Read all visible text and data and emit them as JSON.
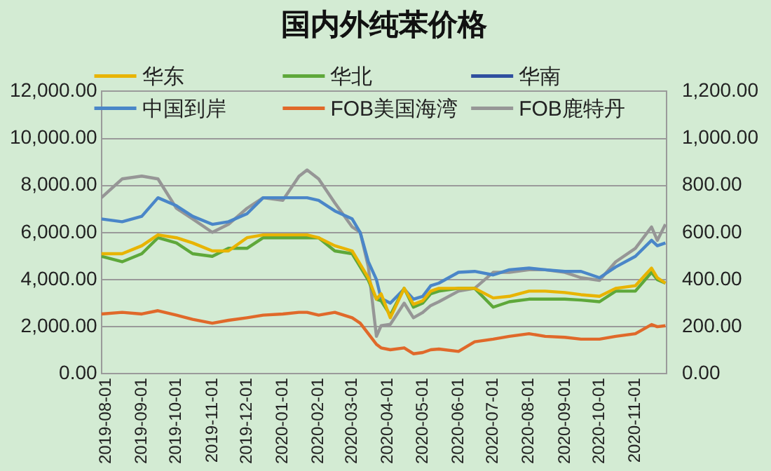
{
  "chart_data": {
    "type": "line",
    "title": "国内外纯苯价格",
    "x": [
      "2019-07-28",
      "2019-08-15",
      "2019-09-01",
      "2019-09-15",
      "2019-10-01",
      "2019-10-15",
      "2019-11-01",
      "2019-11-15",
      "2019-12-01",
      "2019-12-15",
      "2020-01-01",
      "2020-01-15",
      "2020-01-22",
      "2020-02-01",
      "2020-02-15",
      "2020-03-01",
      "2020-03-08",
      "2020-03-15",
      "2020-03-22",
      "2020-03-26",
      "2020-04-03",
      "2020-04-15",
      "2020-04-23",
      "2020-05-01",
      "2020-05-08",
      "2020-05-15",
      "2020-06-01",
      "2020-06-15",
      "2020-07-01",
      "2020-07-15",
      "2020-08-01",
      "2020-08-15",
      "2020-09-01",
      "2020-09-15",
      "2020-10-01",
      "2020-10-15",
      "2020-11-01",
      "2020-11-15",
      "2020-11-20",
      "2020-11-27"
    ],
    "series": [
      {
        "name": "华东",
        "color": "#e8b400",
        "values": [
          5100,
          5100,
          5440,
          5900,
          5780,
          5560,
          5220,
          5220,
          5780,
          5900,
          5900,
          5900,
          5900,
          5780,
          5440,
          5220,
          4650,
          4080,
          3170,
          3400,
          2380,
          3630,
          2950,
          3100,
          3510,
          3630,
          3630,
          3630,
          3220,
          3290,
          3510,
          3510,
          3450,
          3360,
          3290,
          3630,
          3740,
          4490,
          4080,
          3850
        ]
      },
      {
        "name": "华北",
        "color": "#5ea83a",
        "values": [
          4990,
          4760,
          5100,
          5780,
          5560,
          5100,
          4990,
          5330,
          5330,
          5780,
          5780,
          5780,
          5780,
          5780,
          5220,
          5100,
          4540,
          3970,
          3170,
          3100,
          2490,
          3630,
          2830,
          3000,
          3400,
          3510,
          3630,
          3630,
          2830,
          3060,
          3170,
          3170,
          3170,
          3130,
          3060,
          3510,
          3510,
          4310,
          4000,
          3850
        ]
      },
      {
        "name": "华南",
        "color": "#2f4f9f",
        "values": [
          null,
          null,
          null,
          null,
          null,
          null,
          null,
          null,
          null,
          null,
          null,
          null,
          null,
          null,
          null,
          null,
          null,
          null,
          null,
          null,
          null,
          null,
          null,
          null,
          null,
          null,
          null,
          null,
          null,
          null,
          null,
          null,
          null,
          null,
          null,
          null,
          null,
          null,
          null,
          null
        ]
      },
      {
        "name": "中国到岸",
        "color": "#4a86c8",
        "axis": "y2",
        "values": [
          658,
          646,
          669,
          748,
          714,
          669,
          635,
          646,
          680,
          748,
          748,
          748,
          748,
          737,
          692,
          658,
          600,
          476,
          400,
          320,
          300,
          360,
          317,
          329,
          374,
          385,
          431,
          435,
          420,
          442,
          449,
          442,
          435,
          435,
          408,
          454,
          499,
          567,
          544,
          556
        ]
      },
      {
        "name": "FOB美国海湾",
        "color": "#e0692a",
        "axis": "y2",
        "values": [
          254,
          261,
          254,
          268,
          249,
          231,
          215,
          227,
          238,
          249,
          254,
          261,
          261,
          249,
          261,
          238,
          215,
          170,
          125,
          110,
          102,
          110,
          85,
          90,
          102,
          105,
          95,
          136,
          147,
          159,
          170,
          159,
          155,
          147,
          147,
          159,
          170,
          209,
          200,
          204
        ]
      },
      {
        "name": "FOB鹿特丹",
        "color": "#969696",
        "axis": "y2",
        "values": [
          748,
          828,
          840,
          828,
          703,
          658,
          601,
          635,
          703,
          748,
          737,
          839,
          866,
          828,
          726,
          624,
          601,
          454,
          159,
          204,
          210,
          300,
          238,
          260,
          290,
          306,
          351,
          363,
          431,
          431,
          442,
          442,
          431,
          408,
          397,
          476,
          533,
          624,
          567,
          635
        ]
      }
    ],
    "xlim": [
      "2019-07-28",
      "2020-11-28"
    ],
    "xticks": [
      "2019-08-01",
      "2019-09-01",
      "2019-10-01",
      "2019-11-01",
      "2019-12-01",
      "2020-01-01",
      "2020-02-01",
      "2020-03-01",
      "2020-04-01",
      "2020-05-01",
      "2020-06-01",
      "2020-07-01",
      "2020-08-01",
      "2020-09-01",
      "2020-10-01",
      "2020-11-01"
    ],
    "ylim": [
      0,
      12000
    ],
    "yticks": [
      {
        "value": 0,
        "label": "0.00"
      },
      {
        "value": 2000,
        "label": "2,000.00"
      },
      {
        "value": 4000,
        "label": "4,000.00"
      },
      {
        "value": 6000,
        "label": "6,000.00"
      },
      {
        "value": 8000,
        "label": "8,000.00"
      },
      {
        "value": 10000,
        "label": "10,000.00"
      },
      {
        "value": 12000,
        "label": "12,000.00"
      }
    ],
    "y2lim": [
      0,
      1200
    ],
    "y2ticks": [
      {
        "value": 0,
        "label": "0.00"
      },
      {
        "value": 200,
        "label": "200.00"
      },
      {
        "value": 400,
        "label": "400.00"
      },
      {
        "value": 600,
        "label": "600.00"
      },
      {
        "value": 800,
        "label": "800.00"
      },
      {
        "value": 1000,
        "label": "1,000.00"
      },
      {
        "value": 1200,
        "label": "1,200.00"
      }
    ],
    "grid": "y",
    "legend": "top",
    "marker": "none",
    "line_style": "solid"
  }
}
